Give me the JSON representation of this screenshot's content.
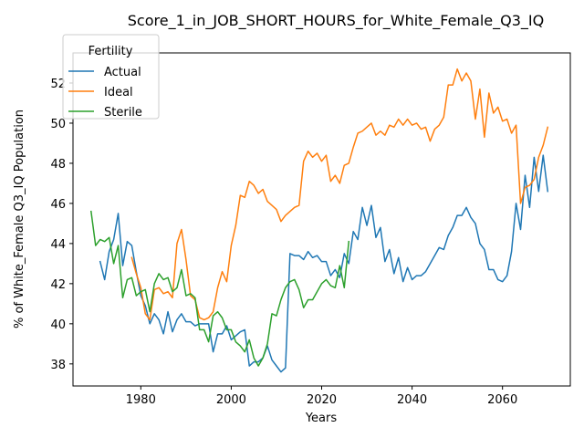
{
  "chart_data": {
    "type": "line",
    "title": "Score_1_in_JOB_SHORT_HOURS_for_White_Female_Q3_IQ",
    "xlabel": "Years",
    "ylabel": "% of White_Female Q3_IQ Population",
    "xlim": [
      1965,
      2075
    ],
    "ylim": [
      36.9,
      53.5
    ],
    "xticks": [
      1980,
      2000,
      2020,
      2040,
      2060
    ],
    "yticks": [
      38,
      40,
      42,
      44,
      46,
      48,
      50,
      52
    ],
    "grid": false,
    "legend": {
      "title": "Fertility",
      "position": "top-left"
    },
    "colors": {
      "Actual": "#1f77b4",
      "Ideal": "#ff7f0e",
      "Sterile": "#2ca02c"
    },
    "series": [
      {
        "name": "Actual",
        "x": [
          1971,
          1972,
          1973,
          1974,
          1975,
          1976,
          1977,
          1978,
          1979,
          1980,
          1981,
          1982,
          1983,
          1984,
          1985,
          1986,
          1987,
          1988,
          1989,
          1990,
          1991,
          1992,
          1993,
          1994,
          1995,
          1996,
          1997,
          1998,
          1999,
          2000,
          2001,
          2002,
          2003,
          2004,
          2005,
          2006,
          2007,
          2008,
          2009,
          2010,
          2011,
          2012,
          2013,
          2014,
          2015,
          2016,
          2017,
          2018,
          2019,
          2020,
          2021,
          2022,
          2023,
          2024,
          2025,
          2026,
          2027,
          2028,
          2029,
          2030,
          2031,
          2032,
          2033,
          2034,
          2035,
          2036,
          2037,
          2038,
          2039,
          2040,
          2041,
          2042,
          2043,
          2044,
          2045,
          2046,
          2047,
          2048,
          2049,
          2050,
          2051,
          2052,
          2053,
          2054,
          2055,
          2056,
          2057,
          2058,
          2059,
          2060,
          2061,
          2062,
          2063,
          2064,
          2065,
          2066,
          2067,
          2068,
          2069,
          2070
        ],
        "y": [
          43.1,
          42.2,
          43.6,
          44.2,
          45.5,
          42.9,
          44.1,
          43.9,
          42.6,
          41.4,
          40.9,
          40.0,
          40.5,
          40.2,
          39.5,
          40.6,
          39.6,
          40.2,
          40.5,
          40.1,
          40.1,
          39.9,
          40.0,
          40.0,
          40.0,
          38.6,
          39.5,
          39.5,
          39.9,
          39.2,
          39.4,
          39.6,
          39.7,
          37.9,
          38.1,
          38.1,
          38.3,
          38.9,
          38.2,
          37.9,
          37.6,
          37.8,
          43.5,
          43.4,
          43.4,
          43.2,
          43.6,
          43.3,
          43.4,
          43.1,
          43.1,
          42.4,
          42.7,
          42.3,
          43.5,
          43.0,
          44.6,
          44.2,
          45.8,
          44.9,
          45.9,
          44.3,
          44.8,
          43.1,
          43.7,
          42.5,
          43.3,
          42.1,
          42.8,
          42.2,
          42.4,
          42.4,
          42.6,
          43.0,
          43.4,
          43.8,
          43.7,
          44.4,
          44.8,
          45.4,
          45.4,
          45.8,
          45.3,
          45.0,
          44.0,
          43.7,
          42.7,
          42.7,
          42.2,
          42.1,
          42.4,
          43.6,
          46.0,
          44.7,
          47.4,
          45.8,
          48.3,
          46.6,
          48.4,
          46.6
        ]
      },
      {
        "name": "Ideal",
        "x": [
          1978,
          1979,
          1980,
          1981,
          1982,
          1983,
          1984,
          1985,
          1986,
          1987,
          1988,
          1989,
          1990,
          1991,
          1992,
          1993,
          1994,
          1995,
          1996,
          1997,
          1998,
          1999,
          2000,
          2001,
          2002,
          2003,
          2004,
          2005,
          2006,
          2007,
          2008,
          2009,
          2010,
          2011,
          2012,
          2013,
          2014,
          2015,
          2016,
          2017,
          2018,
          2019,
          2020,
          2021,
          2022,
          2023,
          2024,
          2025,
          2026,
          2027,
          2028,
          2029,
          2030,
          2031,
          2032,
          2033,
          2034,
          2035,
          2036,
          2037,
          2038,
          2039,
          2040,
          2041,
          2042,
          2043,
          2044,
          2045,
          2046,
          2047,
          2048,
          2049,
          2050,
          2051,
          2052,
          2053,
          2054,
          2055,
          2056,
          2057,
          2058,
          2059,
          2060,
          2061,
          2062,
          2063,
          2064,
          2065,
          2066,
          2067,
          2068,
          2069,
          2070
        ],
        "y": [
          43.3,
          42.5,
          41.8,
          40.5,
          40.2,
          41.7,
          41.8,
          41.5,
          41.6,
          41.3,
          44.0,
          44.7,
          43.2,
          41.4,
          41.2,
          40.3,
          40.2,
          40.3,
          40.6,
          41.8,
          42.6,
          42.1,
          43.9,
          44.9,
          46.4,
          46.3,
          47.1,
          46.9,
          46.5,
          46.7,
          46.1,
          45.9,
          45.7,
          45.1,
          45.4,
          45.6,
          45.8,
          45.9,
          48.1,
          48.6,
          48.3,
          48.5,
          48.1,
          48.4,
          47.1,
          47.4,
          47.0,
          47.9,
          48.0,
          48.8,
          49.5,
          49.6,
          49.8,
          50.0,
          49.4,
          49.6,
          49.4,
          49.9,
          49.8,
          50.2,
          49.9,
          50.2,
          49.9,
          50.0,
          49.7,
          49.8,
          49.1,
          49.7,
          49.9,
          50.3,
          51.9,
          51.9,
          52.7,
          52.1,
          52.5,
          52.1,
          50.2,
          51.7,
          49.3,
          51.5,
          50.5,
          50.8,
          50.1,
          50.2,
          49.5,
          49.9,
          46.0,
          46.8,
          46.9,
          47.2,
          48.3,
          48.9,
          49.8
        ]
      },
      {
        "name": "Sterile",
        "x": [
          1969,
          1970,
          1971,
          1972,
          1973,
          1974,
          1975,
          1976,
          1977,
          1978,
          1979,
          1980,
          1981,
          1982,
          1983,
          1984,
          1985,
          1986,
          1987,
          1988,
          1989,
          1990,
          1991,
          1992,
          1993,
          1994,
          1995,
          1996,
          1997,
          1998,
          1999,
          2000,
          2001,
          2002,
          2003,
          2004,
          2005,
          2006,
          2007,
          2008,
          2009,
          2010,
          2011,
          2012,
          2013,
          2014,
          2015,
          2016,
          2017,
          2018,
          2019,
          2020,
          2021,
          2022,
          2023,
          2024,
          2025,
          2026
        ],
        "y": [
          45.6,
          43.9,
          44.2,
          44.1,
          44.3,
          43.0,
          43.9,
          41.3,
          42.2,
          42.3,
          41.4,
          41.6,
          41.7,
          40.6,
          42.0,
          42.5,
          42.2,
          42.3,
          41.6,
          41.8,
          42.7,
          41.4,
          41.5,
          41.3,
          39.7,
          39.7,
          39.1,
          40.4,
          40.6,
          40.3,
          39.7,
          39.7,
          39.1,
          38.9,
          38.6,
          39.2,
          38.3,
          37.9,
          38.3,
          39.0,
          40.5,
          40.4,
          41.2,
          41.8,
          42.1,
          42.2,
          41.7,
          40.8,
          41.2,
          41.2,
          41.6,
          42.0,
          42.2,
          41.9,
          41.8,
          42.9,
          41.8,
          44.1
        ]
      }
    ]
  }
}
